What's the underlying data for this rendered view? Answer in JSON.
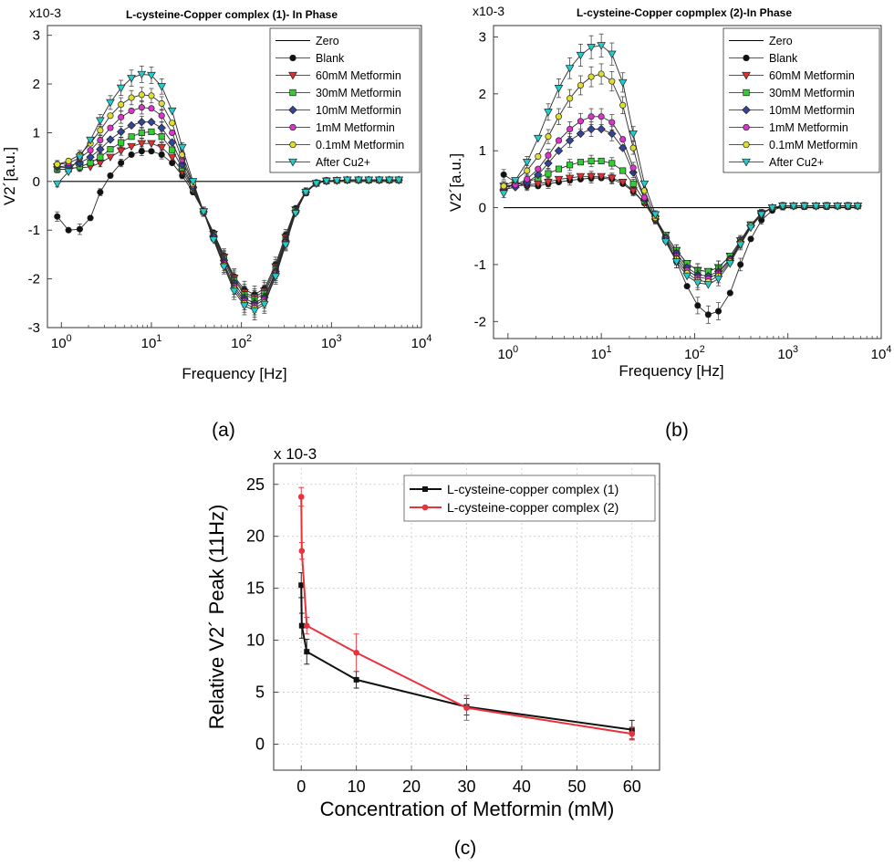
{
  "chart_data": [
    {
      "type": "line",
      "panel_label": "(a)",
      "title": "L-cysteine-Copper complex (1)- In Phase",
      "xlabel": "Frequency [Hz]",
      "ylabel": "V2´[a.u.]",
      "xscale": "log",
      "xlim": [
        0.7,
        10000
      ],
      "ylim": [
        -3,
        3.2
      ],
      "exponent_label": "x10-3",
      "x_ticks": [
        "10^0",
        "10^1",
        "10^2",
        "10^3",
        "10^4"
      ],
      "y_ticks": [
        "-3",
        "-2",
        "-1",
        "0",
        "1",
        "2",
        "3"
      ],
      "legend_position": "top-right",
      "x": [
        0.9,
        1.2,
        1.6,
        2.1,
        2.7,
        3.5,
        4.6,
        6.0,
        7.8,
        10,
        13,
        17,
        22,
        29,
        38,
        49,
        64,
        83,
        108,
        140,
        180,
        240,
        310,
        400,
        520,
        680,
        880,
        1150,
        1500,
        2000,
        2600,
        3400,
        4400,
        5600
      ],
      "series": [
        {
          "name": "Zero",
          "color": "#000000",
          "marker": "none",
          "values": [
            0,
            0,
            0,
            0,
            0,
            0,
            0,
            0,
            0,
            0,
            0,
            0,
            0,
            0,
            0,
            0,
            0,
            0,
            0,
            0,
            0,
            0,
            0,
            0,
            0,
            0,
            0,
            0,
            0,
            0,
            0,
            0,
            0,
            0
          ]
        },
        {
          "name": "Blank",
          "color": "#111111",
          "marker": "circle",
          "values": [
            -0.72,
            -1.0,
            -0.98,
            -0.75,
            -0.22,
            0.12,
            0.38,
            0.55,
            0.62,
            0.62,
            0.55,
            0.38,
            0.12,
            -0.22,
            -0.62,
            -1.05,
            -1.52,
            -1.95,
            -2.22,
            -2.32,
            -2.2,
            -1.7,
            -1.1,
            -0.55,
            -0.2,
            -0.02,
            0.02,
            0.02,
            0.03,
            0.03,
            0.03,
            0.03,
            0.03,
            0.03
          ]
        },
        {
          "name": "60mM Metformin",
          "color": "#e03030",
          "marker": "triangle-down",
          "values": [
            0.3,
            0.28,
            0.28,
            0.3,
            0.38,
            0.5,
            0.63,
            0.72,
            0.78,
            0.78,
            0.7,
            0.5,
            0.2,
            -0.18,
            -0.62,
            -1.08,
            -1.55,
            -1.98,
            -2.28,
            -2.38,
            -2.25,
            -1.75,
            -1.15,
            -0.58,
            -0.22,
            -0.04,
            0.01,
            0.02,
            0.03,
            0.03,
            0.03,
            0.03,
            0.03,
            0.03
          ]
        },
        {
          "name": "30mM Metformin",
          "color": "#33cc33",
          "marker": "square",
          "values": [
            0.25,
            0.25,
            0.3,
            0.38,
            0.5,
            0.66,
            0.8,
            0.92,
            1.0,
            1.02,
            0.92,
            0.65,
            0.28,
            -0.15,
            -0.62,
            -1.1,
            -1.58,
            -2.02,
            -2.32,
            -2.42,
            -2.3,
            -1.8,
            -1.2,
            -0.6,
            -0.22,
            -0.04,
            0.01,
            0.02,
            0.03,
            0.03,
            0.03,
            0.03,
            0.03,
            0.03
          ]
        },
        {
          "name": "10mM Metformin",
          "color": "#334499",
          "marker": "diamond",
          "values": [
            0.3,
            0.32,
            0.38,
            0.5,
            0.66,
            0.86,
            1.02,
            1.15,
            1.22,
            1.22,
            1.1,
            0.8,
            0.35,
            -0.12,
            -0.62,
            -1.12,
            -1.62,
            -2.08,
            -2.4,
            -2.5,
            -2.38,
            -1.85,
            -1.22,
            -0.62,
            -0.22,
            -0.04,
            0.01,
            0.02,
            0.03,
            0.03,
            0.03,
            0.03,
            0.03,
            0.03
          ]
        },
        {
          "name": "1mM Metformin",
          "color": "#dd33cc",
          "marker": "circle",
          "values": [
            0.35,
            0.38,
            0.48,
            0.64,
            0.85,
            1.1,
            1.32,
            1.45,
            1.52,
            1.5,
            1.35,
            1.0,
            0.45,
            -0.08,
            -0.62,
            -1.15,
            -1.68,
            -2.15,
            -2.45,
            -2.55,
            -2.42,
            -1.88,
            -1.25,
            -0.62,
            -0.22,
            -0.04,
            0.01,
            0.02,
            0.03,
            0.03,
            0.03,
            0.03,
            0.03,
            0.03
          ]
        },
        {
          "name": "0.1mM Metformin",
          "color": "#dddd33",
          "marker": "circle",
          "values": [
            0.35,
            0.42,
            0.55,
            0.78,
            1.05,
            1.35,
            1.58,
            1.72,
            1.78,
            1.76,
            1.6,
            1.2,
            0.55,
            -0.05,
            -0.62,
            -1.18,
            -1.72,
            -2.2,
            -2.5,
            -2.6,
            -2.48,
            -1.92,
            -1.28,
            -0.64,
            -0.22,
            -0.04,
            0.01,
            0.02,
            0.03,
            0.03,
            0.03,
            0.03,
            0.03,
            0.03
          ]
        },
        {
          "name": "After Cu2+",
          "color": "#22cccc",
          "marker": "triangle-down",
          "values": [
            -0.05,
            0.2,
            0.5,
            0.85,
            1.25,
            1.62,
            1.92,
            2.12,
            2.2,
            2.18,
            1.95,
            1.45,
            0.7,
            0.0,
            -0.62,
            -1.2,
            -1.75,
            -2.25,
            -2.55,
            -2.65,
            -2.52,
            -1.95,
            -1.3,
            -0.65,
            -0.22,
            -0.04,
            0.01,
            0.02,
            0.03,
            0.03,
            0.03,
            0.03,
            0.03,
            0.03
          ]
        }
      ]
    },
    {
      "type": "line",
      "panel_label": "(b)",
      "title": "L-cysteine-Copper copmplex (2)-In Phase",
      "xlabel": "Frequency [Hz]",
      "ylabel": "V2´[a.u.]",
      "xscale": "log",
      "xlim": [
        0.7,
        10000
      ],
      "ylim": [
        -2.3,
        3.2
      ],
      "exponent_label": "x10-3",
      "x_ticks": [
        "10^0",
        "10^1",
        "10^2",
        "10^3",
        "10^4"
      ],
      "y_ticks": [
        "-2",
        "-1",
        "0",
        "1",
        "2",
        "3"
      ],
      "legend_position": "top-right",
      "x": [
        0.9,
        1.2,
        1.6,
        2.1,
        2.7,
        3.5,
        4.6,
        6.0,
        7.8,
        10,
        13,
        17,
        22,
        29,
        38,
        49,
        64,
        83,
        108,
        140,
        180,
        240,
        310,
        400,
        520,
        680,
        880,
        1150,
        1500,
        2000,
        2600,
        3400,
        4400,
        5600
      ],
      "series": [
        {
          "name": "Zero",
          "color": "#000000",
          "marker": "none",
          "values": [
            0,
            0,
            0,
            0,
            0,
            0,
            0,
            0,
            0,
            0,
            0,
            0,
            0,
            0,
            0,
            0,
            0,
            0,
            0,
            0,
            0,
            0,
            0,
            0,
            0,
            0,
            0,
            0,
            0,
            0,
            0,
            0,
            0,
            0
          ]
        },
        {
          "name": "Blank",
          "color": "#111111",
          "marker": "circle",
          "values": [
            0.58,
            0.45,
            0.38,
            0.38,
            0.42,
            0.45,
            0.48,
            0.5,
            0.52,
            0.52,
            0.5,
            0.42,
            0.28,
            0.08,
            -0.22,
            -0.55,
            -0.95,
            -1.38,
            -1.72,
            -1.88,
            -1.82,
            -1.5,
            -1.0,
            -0.55,
            -0.22,
            -0.05,
            0.02,
            0.03,
            0.03,
            0.03,
            0.03,
            0.03,
            0.03,
            0.03
          ]
        },
        {
          "name": "60mM Metformin",
          "color": "#e03030",
          "marker": "triangle-down",
          "values": [
            0.38,
            0.38,
            0.4,
            0.42,
            0.45,
            0.5,
            0.52,
            0.55,
            0.55,
            0.55,
            0.52,
            0.45,
            0.3,
            0.08,
            -0.2,
            -0.48,
            -0.75,
            -0.98,
            -1.1,
            -1.12,
            -1.05,
            -0.85,
            -0.58,
            -0.3,
            -0.1,
            0.0,
            0.03,
            0.03,
            0.03,
            0.03,
            0.03,
            0.03,
            0.03,
            0.03
          ]
        },
        {
          "name": "30mM Metformin",
          "color": "#33cc33",
          "marker": "square",
          "values": [
            0.38,
            0.4,
            0.45,
            0.52,
            0.6,
            0.68,
            0.75,
            0.8,
            0.82,
            0.82,
            0.78,
            0.65,
            0.42,
            0.12,
            -0.18,
            -0.48,
            -0.75,
            -0.98,
            -1.1,
            -1.12,
            -1.05,
            -0.85,
            -0.58,
            -0.3,
            -0.1,
            0.0,
            0.03,
            0.03,
            0.03,
            0.03,
            0.03,
            0.03,
            0.03,
            0.03
          ]
        },
        {
          "name": "10mM Metformin",
          "color": "#334499",
          "marker": "diamond",
          "values": [
            0.32,
            0.36,
            0.44,
            0.58,
            0.78,
            1.0,
            1.18,
            1.3,
            1.38,
            1.38,
            1.3,
            1.05,
            0.62,
            0.15,
            -0.2,
            -0.52,
            -0.8,
            -1.05,
            -1.18,
            -1.2,
            -1.12,
            -0.9,
            -0.6,
            -0.32,
            -0.1,
            0.0,
            0.03,
            0.03,
            0.03,
            0.03,
            0.03,
            0.03,
            0.03,
            0.03
          ]
        },
        {
          "name": "1mM Metformin",
          "color": "#dd33cc",
          "marker": "circle",
          "values": [
            0.35,
            0.4,
            0.5,
            0.68,
            0.92,
            1.18,
            1.38,
            1.52,
            1.6,
            1.6,
            1.5,
            1.2,
            0.7,
            0.18,
            -0.2,
            -0.55,
            -0.85,
            -1.1,
            -1.22,
            -1.25,
            -1.15,
            -0.92,
            -0.62,
            -0.32,
            -0.1,
            0.0,
            0.03,
            0.03,
            0.03,
            0.03,
            0.03,
            0.03,
            0.03,
            0.03
          ]
        },
        {
          "name": "0.1mM Metformin",
          "color": "#dddd33",
          "marker": "circle",
          "values": [
            0.38,
            0.48,
            0.65,
            0.9,
            1.25,
            1.6,
            1.92,
            2.15,
            2.3,
            2.35,
            2.22,
            1.8,
            1.05,
            0.3,
            -0.18,
            -0.58,
            -0.9,
            -1.15,
            -1.28,
            -1.3,
            -1.2,
            -0.95,
            -0.62,
            -0.32,
            -0.1,
            0.0,
            0.03,
            0.03,
            0.03,
            0.03,
            0.03,
            0.03,
            0.03,
            0.03
          ]
        },
        {
          "name": "After Cu2+",
          "color": "#22cccc",
          "marker": "triangle-down",
          "values": [
            0.25,
            0.48,
            0.8,
            1.22,
            1.68,
            2.1,
            2.45,
            2.68,
            2.82,
            2.85,
            2.7,
            2.2,
            1.3,
            0.42,
            -0.12,
            -0.6,
            -0.95,
            -1.2,
            -1.32,
            -1.35,
            -1.25,
            -0.98,
            -0.65,
            -0.35,
            -0.12,
            0.0,
            0.03,
            0.03,
            0.03,
            0.03,
            0.03,
            0.03,
            0.03,
            0.03
          ]
        }
      ]
    },
    {
      "type": "line",
      "panel_label": "(c)",
      "title": "",
      "xlabel": "Concentration of Metformin (mM)",
      "ylabel": "Relative V2´ Peak (11Hz)",
      "xlim": [
        -5,
        65
      ],
      "ylim": [
        -2.5,
        27
      ],
      "exponent_label": "x 10-3",
      "x_ticks": [
        "0",
        "10",
        "20",
        "30",
        "40",
        "50",
        "60"
      ],
      "y_ticks": [
        "0",
        "5",
        "10",
        "15",
        "20",
        "25"
      ],
      "grid": true,
      "legend_position": "top-right",
      "series": [
        {
          "name": "L-cysteine-copper complex (1)",
          "color": "#111111",
          "marker": "square",
          "x": [
            0,
            0.1,
            1,
            10,
            30,
            60
          ],
          "values": [
            15.3,
            11.4,
            8.9,
            6.2,
            3.6,
            1.4
          ],
          "errors": [
            1.2,
            1.2,
            1.2,
            0.8,
            0.8,
            0.9
          ]
        },
        {
          "name": "L-cysteine-copper complex (2)",
          "color": "#e8323c",
          "marker": "circle",
          "x": [
            0,
            0.1,
            1,
            10,
            30,
            60
          ],
          "values": [
            23.8,
            18.6,
            11.4,
            8.8,
            3.5,
            1.0
          ],
          "errors": [
            0.9,
            0.8,
            0.8,
            1.8,
            1.2,
            0.6
          ]
        }
      ]
    }
  ]
}
